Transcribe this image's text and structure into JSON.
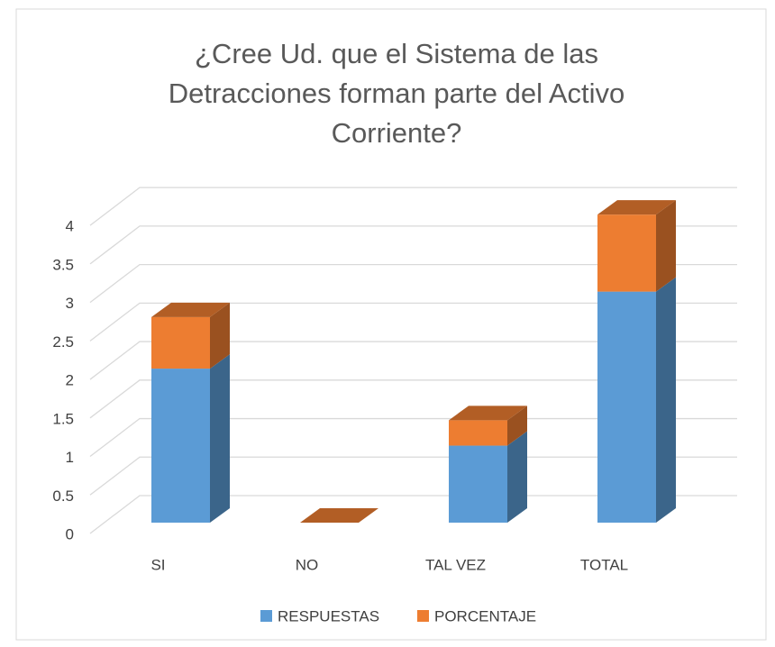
{
  "chart_data": {
    "type": "bar3d_stacked",
    "title": "¿Cree Ud. que el Sistema de las Detracciones forman parte del Activo Corriente?",
    "categories": [
      "SI",
      "NO",
      "TAL VEZ",
      "TOTAL"
    ],
    "series": [
      {
        "name": "RESPUESTAS",
        "color": "#5b9bd5",
        "values": [
          2,
          0,
          1,
          3
        ]
      },
      {
        "name": "PORCENTAJE",
        "color": "#ed7d31",
        "values": [
          0.67,
          0,
          0.33,
          1
        ]
      }
    ],
    "ylim": [
      0,
      4
    ],
    "yticks": [
      0,
      0.5,
      1,
      1.5,
      2,
      2.5,
      3,
      3.5,
      4
    ],
    "grid": true,
    "legend": "bottom"
  }
}
